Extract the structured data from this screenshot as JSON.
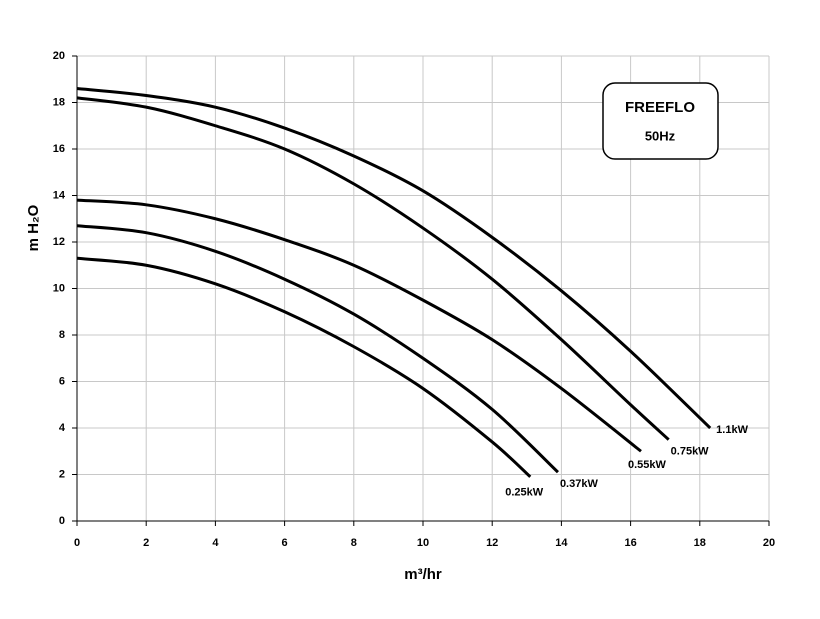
{
  "chart_data": {
    "type": "line",
    "xlabel": "m³/hr",
    "ylabel": "m H₂O",
    "annotations": [
      "FREEFLO",
      "50Hz"
    ],
    "xlim": [
      0,
      20
    ],
    "xticks": [
      0,
      2,
      4,
      6,
      8,
      10,
      12,
      14,
      16,
      18,
      20
    ],
    "ylim": [
      0,
      20
    ],
    "yticks": [
      0,
      2,
      4,
      6,
      8,
      10,
      12,
      14,
      16,
      18,
      20
    ],
    "grid": true,
    "series": [
      {
        "name": "0.25kW",
        "color": "#000000",
        "x": [
          0,
          2,
          4,
          6,
          8,
          10,
          12,
          13.1
        ],
        "values": [
          11.3,
          11.0,
          10.2,
          9.0,
          7.5,
          5.7,
          3.4,
          1.9
        ]
      },
      {
        "name": "0.37kW",
        "color": "#000000",
        "x": [
          0,
          2,
          4,
          6,
          8,
          10,
          12,
          13.9
        ],
        "values": [
          12.7,
          12.4,
          11.6,
          10.4,
          8.9,
          7.0,
          4.8,
          2.1
        ]
      },
      {
        "name": "0.55kW",
        "color": "#000000",
        "x": [
          0,
          2,
          4,
          6,
          8,
          10,
          12,
          14,
          16.3
        ],
        "values": [
          13.8,
          13.6,
          13.0,
          12.1,
          11.0,
          9.5,
          7.8,
          5.7,
          3.0
        ]
      },
      {
        "name": "0.75kW",
        "color": "#000000",
        "x": [
          0,
          2,
          4,
          6,
          8,
          10,
          12,
          14,
          16,
          17.1
        ],
        "values": [
          18.2,
          17.8,
          17.0,
          16.0,
          14.5,
          12.6,
          10.4,
          7.8,
          5.0,
          3.5
        ]
      },
      {
        "name": "1.1kW",
        "color": "#000000",
        "x": [
          0,
          2,
          4,
          6,
          8,
          10,
          12,
          14,
          16,
          18.3
        ],
        "values": [
          18.6,
          18.3,
          17.8,
          16.9,
          15.7,
          14.2,
          12.2,
          9.9,
          7.3,
          4.0
        ]
      }
    ]
  }
}
